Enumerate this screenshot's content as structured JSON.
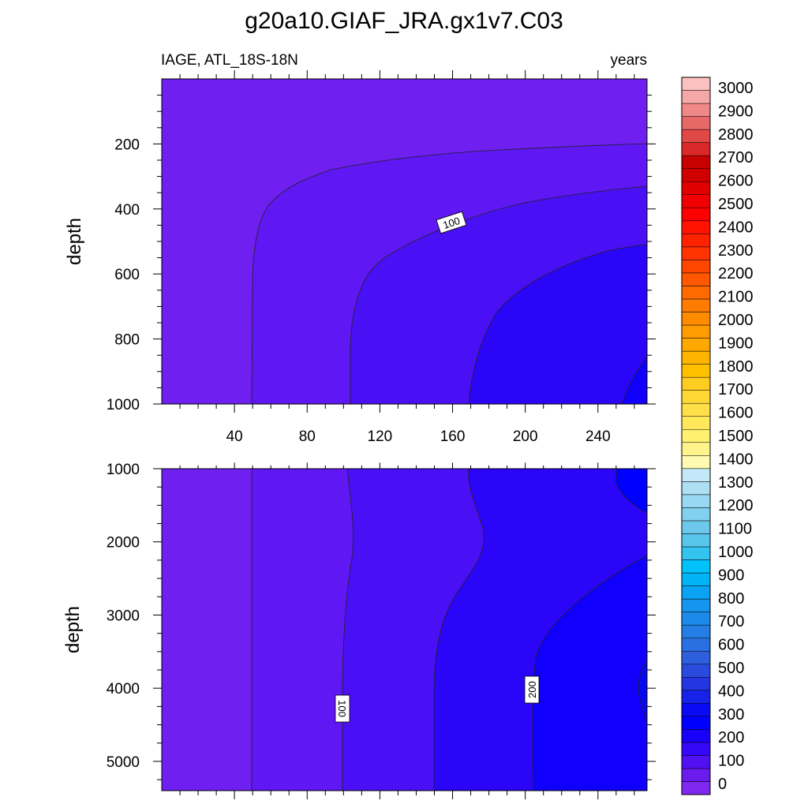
{
  "chart_data": {
    "type": "heatmap",
    "title": "g20a10.GIAF_JRA.gx1v7.C03",
    "left_subtitle": "IAGE, ATL_18S-18N",
    "right_subtitle": "years",
    "panels": [
      {
        "name": "upper",
        "ylabel": "depth",
        "xlim": [
          0,
          267
        ],
        "ylim": [
          0,
          1000
        ],
        "y_reversed": true,
        "xticks": [
          "40",
          "80",
          "120",
          "160",
          "200",
          "240"
        ],
        "yticks": [
          "200",
          "400",
          "600",
          "800",
          "1000"
        ],
        "contour_labels": [
          "100"
        ],
        "fill_colors": [
          "#6f1ff0",
          "#5f17f3",
          "#4a10f5",
          "#2a05f8",
          "#1000fb"
        ]
      },
      {
        "name": "lower",
        "ylabel": "depth",
        "xlim": [
          0,
          267
        ],
        "ylim": [
          1000,
          5400
        ],
        "y_reversed": true,
        "yticks": [
          "1000",
          "2000",
          "3000",
          "4000",
          "5000"
        ],
        "contour_labels": [
          "100",
          "200"
        ],
        "fill_colors": [
          "#6f1ff0",
          "#5f17f3",
          "#4a10f5",
          "#2a05f8",
          "#1000fb",
          "#0000ff",
          "#0808f0"
        ]
      }
    ],
    "colorbar": {
      "labels": [
        "0",
        "100",
        "200",
        "300",
        "400",
        "500",
        "600",
        "700",
        "800",
        "900",
        "1000",
        "1100",
        "1200",
        "1300",
        "1400",
        "1500",
        "1600",
        "1700",
        "1800",
        "1900",
        "2000",
        "2100",
        "2200",
        "2300",
        "2400",
        "2500",
        "2600",
        "2700",
        "2800",
        "2900",
        "3000"
      ],
      "colors": [
        "#7f28f0",
        "#6a1bee",
        "#5010f2",
        "#3408f6",
        "#1800fa",
        "#0000ff",
        "#0a0af4",
        "#1722e8",
        "#2436e2",
        "#2a4ade",
        "#2e60de",
        "#2a70e2",
        "#247ee6",
        "#1c8aea",
        "#1496ee",
        "#0aa2f2",
        "#00b4f6",
        "#00c2fa",
        "#34c4f0",
        "#58c6ec",
        "#6ec8ec",
        "#82d0f0",
        "#98d8f2",
        "#aedff4",
        "#c4e8f8",
        "#fffab0",
        "#fff48c",
        "#fff070",
        "#ffe85a",
        "#ffe048",
        "#ffd838",
        "#ffcc22",
        "#ffc000",
        "#ffb400",
        "#ffa800",
        "#ff9c00",
        "#ff8c00",
        "#ff7c00",
        "#ff6a00",
        "#ff5800",
        "#ff4600",
        "#ff3400",
        "#ff2200",
        "#ff1200",
        "#ff0000",
        "#f00000",
        "#e00000",
        "#d00000",
        "#c80000",
        "#d82828",
        "#e04848",
        "#e86868",
        "#f08888",
        "#f6a8a8",
        "#fbc0c0"
      ]
    }
  }
}
